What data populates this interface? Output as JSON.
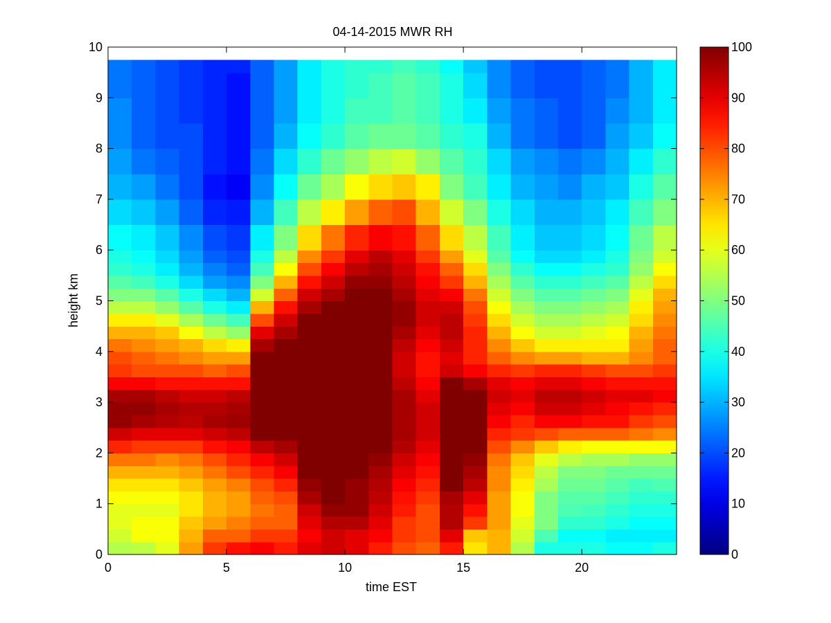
{
  "chart_data": {
    "type": "heatmap",
    "title": "04-14-2015 MWR RH",
    "xlabel": "time EST",
    "ylabel": "height km",
    "xlim": [
      0,
      24
    ],
    "ylim": [
      0,
      10
    ],
    "x_ticks": [
      "0",
      "5",
      "10",
      "15",
      "20"
    ],
    "y_ticks": [
      "0",
      "1",
      "2",
      "3",
      "4",
      "5",
      "6",
      "7",
      "8",
      "9",
      "10"
    ],
    "colorbar": {
      "range": [
        0,
        100
      ],
      "ticks": [
        "0",
        "10",
        "20",
        "30",
        "40",
        "50",
        "60",
        "70",
        "80",
        "90",
        "100"
      ],
      "colormap": "jet"
    },
    "grid": false,
    "x_bin_width_hours": 1,
    "x_bin_start_hours": 0,
    "y_max_km": 9.75,
    "x": [
      0,
      1,
      2,
      3,
      4,
      5,
      6,
      7,
      8,
      9,
      10,
      11,
      12,
      13,
      14,
      15,
      16,
      17,
      18,
      19,
      20,
      21,
      22,
      23
    ],
    "heights_km": [
      0,
      0.25,
      0.5,
      0.75,
      1,
      1.25,
      1.5,
      1.75,
      2,
      2.25,
      2.5,
      2.75,
      3,
      3.25,
      3.5,
      3.75,
      4,
      4.25,
      4.5,
      4.75,
      5,
      5.25,
      5.5,
      5.75,
      6,
      6.5,
      7,
      7.5,
      8,
      8.5,
      9,
      9.5
    ],
    "rh": [
      [
        55,
        56,
        60,
        72,
        82,
        86,
        88,
        85,
        90,
        92,
        90,
        85,
        80,
        78,
        85,
        65,
        70,
        55,
        40,
        40,
        40,
        38,
        38,
        40
      ],
      [
        58,
        62,
        62,
        70,
        78,
        78,
        82,
        82,
        88,
        92,
        90,
        88,
        82,
        80,
        90,
        68,
        70,
        58,
        45,
        38,
        38,
        36,
        36,
        36
      ],
      [
        60,
        62,
        62,
        68,
        72,
        75,
        78,
        78,
        90,
        95,
        95,
        90,
        82,
        80,
        95,
        82,
        72,
        60,
        50,
        42,
        42,
        40,
        38,
        38
      ],
      [
        60,
        60,
        60,
        65,
        70,
        72,
        76,
        78,
        92,
        98,
        98,
        92,
        85,
        80,
        95,
        86,
        72,
        62,
        50,
        45,
        44,
        42,
        40,
        40
      ],
      [
        62,
        62,
        62,
        65,
        70,
        72,
        78,
        80,
        96,
        100,
        98,
        94,
        86,
        82,
        96,
        90,
        72,
        62,
        50,
        46,
        46,
        44,
        42,
        42
      ],
      [
        65,
        65,
        65,
        68,
        72,
        75,
        80,
        84,
        98,
        100,
        98,
        95,
        88,
        84,
        100,
        94,
        74,
        64,
        54,
        48,
        48,
        46,
        44,
        45
      ],
      [
        70,
        70,
        70,
        72,
        76,
        80,
        84,
        88,
        100,
        100,
        100,
        96,
        90,
        86,
        100,
        96,
        74,
        66,
        56,
        50,
        50,
        48,
        48,
        48
      ],
      [
        76,
        76,
        74,
        76,
        80,
        84,
        88,
        92,
        100,
        100,
        100,
        98,
        92,
        88,
        100,
        98,
        76,
        68,
        60,
        56,
        54,
        54,
        52,
        52
      ],
      [
        84,
        82,
        82,
        82,
        86,
        88,
        94,
        96,
        100,
        100,
        100,
        100,
        95,
        90,
        100,
        100,
        80,
        74,
        68,
        64,
        62,
        62,
        62,
        62
      ],
      [
        92,
        90,
        90,
        90,
        92,
        94,
        100,
        100,
        100,
        100,
        100,
        100,
        96,
        92,
        100,
        100,
        84,
        82,
        80,
        78,
        78,
        78,
        76,
        74
      ],
      [
        98,
        96,
        95,
        94,
        96,
        97,
        100,
        100,
        100,
        100,
        100,
        100,
        96,
        92,
        100,
        100,
        88,
        84,
        88,
        88,
        86,
        86,
        82,
        80
      ],
      [
        98,
        98,
        96,
        95,
        95,
        96,
        100,
        100,
        100,
        100,
        100,
        100,
        96,
        92,
        100,
        100,
        90,
        88,
        92,
        92,
        90,
        88,
        86,
        84
      ],
      [
        96,
        96,
        94,
        92,
        92,
        94,
        100,
        100,
        100,
        100,
        100,
        100,
        96,
        90,
        100,
        100,
        92,
        90,
        94,
        94,
        92,
        90,
        90,
        88
      ],
      [
        88,
        88,
        86,
        86,
        86,
        86,
        100,
        100,
        100,
        100,
        100,
        100,
        94,
        88,
        100,
        96,
        90,
        88,
        90,
        90,
        88,
        86,
        86,
        86
      ],
      [
        82,
        80,
        80,
        80,
        78,
        80,
        100,
        100,
        100,
        100,
        100,
        100,
        92,
        86,
        92,
        88,
        84,
        82,
        84,
        84,
        82,
        80,
        80,
        82
      ],
      [
        80,
        78,
        76,
        74,
        72,
        72,
        100,
        100,
        100,
        100,
        100,
        100,
        92,
        86,
        90,
        84,
        78,
        74,
        72,
        72,
        70,
        70,
        74,
        78
      ],
      [
        76,
        74,
        72,
        70,
        66,
        64,
        96,
        100,
        100,
        100,
        100,
        100,
        94,
        88,
        92,
        84,
        74,
        68,
        64,
        64,
        64,
        64,
        72,
        78
      ],
      [
        70,
        70,
        68,
        62,
        56,
        52,
        90,
        96,
        100,
        100,
        100,
        100,
        96,
        90,
        94,
        84,
        70,
        62,
        58,
        58,
        60,
        62,
        70,
        76
      ],
      [
        64,
        64,
        60,
        54,
        48,
        44,
        80,
        92,
        100,
        100,
        100,
        100,
        98,
        92,
        94,
        82,
        66,
        58,
        54,
        54,
        56,
        58,
        66,
        74
      ],
      [
        56,
        56,
        52,
        46,
        40,
        36,
        70,
        86,
        96,
        100,
        100,
        100,
        98,
        92,
        92,
        80,
        62,
        54,
        50,
        50,
        52,
        54,
        64,
        72
      ],
      [
        50,
        50,
        46,
        40,
        34,
        30,
        58,
        78,
        92,
        96,
        100,
        100,
        96,
        90,
        88,
        76,
        58,
        50,
        46,
        46,
        48,
        50,
        60,
        70
      ],
      [
        46,
        44,
        40,
        34,
        28,
        26,
        50,
        70,
        86,
        92,
        98,
        98,
        94,
        88,
        82,
        70,
        54,
        46,
        42,
        42,
        44,
        46,
        56,
        66
      ],
      [
        42,
        40,
        36,
        30,
        25,
        22,
        44,
        62,
        80,
        88,
        94,
        96,
        92,
        86,
        78,
        66,
        50,
        42,
        38,
        38,
        40,
        42,
        52,
        62
      ],
      [
        40,
        38,
        34,
        28,
        22,
        20,
        40,
        56,
        74,
        82,
        90,
        94,
        90,
        82,
        72,
        60,
        46,
        38,
        34,
        34,
        36,
        40,
        50,
        58
      ],
      [
        38,
        36,
        32,
        26,
        20,
        18,
        36,
        50,
        66,
        76,
        84,
        88,
        86,
        78,
        66,
        56,
        44,
        36,
        32,
        32,
        34,
        38,
        48,
        56
      ],
      [
        34,
        32,
        28,
        22,
        16,
        15,
        30,
        44,
        56,
        64,
        72,
        78,
        80,
        70,
        58,
        50,
        40,
        34,
        30,
        30,
        32,
        36,
        44,
        50
      ],
      [
        30,
        28,
        24,
        20,
        14,
        12,
        26,
        38,
        48,
        54,
        62,
        66,
        68,
        64,
        50,
        44,
        36,
        30,
        28,
        26,
        30,
        32,
        40,
        46
      ],
      [
        28,
        24,
        22,
        20,
        16,
        14,
        24,
        34,
        42,
        48,
        52,
        56,
        58,
        52,
        46,
        42,
        34,
        28,
        26,
        24,
        26,
        30,
        36,
        42
      ],
      [
        26,
        22,
        20,
        20,
        16,
        14,
        22,
        30,
        38,
        42,
        46,
        48,
        48,
        46,
        42,
        40,
        30,
        24,
        22,
        20,
        22,
        28,
        32,
        38
      ],
      [
        26,
        22,
        20,
        18,
        16,
        14,
        22,
        28,
        36,
        40,
        44,
        44,
        46,
        44,
        40,
        36,
        28,
        24,
        22,
        20,
        22,
        26,
        30,
        36
      ],
      [
        24,
        22,
        20,
        18,
        16,
        14,
        22,
        28,
        36,
        40,
        42,
        44,
        46,
        44,
        40,
        34,
        26,
        22,
        20,
        20,
        22,
        24,
        30,
        36
      ],
      [
        24,
        22,
        20,
        18,
        16,
        16,
        22,
        28,
        36,
        40,
        42,
        42,
        44,
        42,
        38,
        32,
        26,
        22,
        20,
        20,
        22,
        24,
        30,
        36
      ]
    ]
  }
}
